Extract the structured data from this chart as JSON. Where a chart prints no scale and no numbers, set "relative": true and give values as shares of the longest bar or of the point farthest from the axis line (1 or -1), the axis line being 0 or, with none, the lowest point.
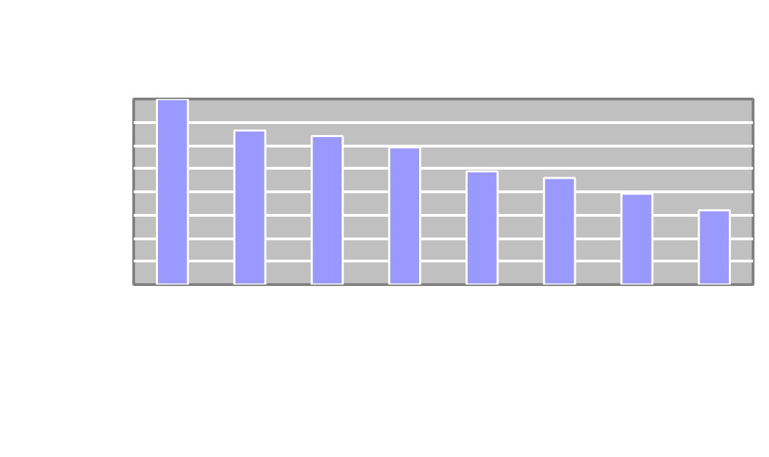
{
  "chart_data": {
    "type": "bar",
    "relative": true,
    "categories": [
      null,
      null,
      null,
      null,
      null,
      null,
      null,
      null
    ],
    "values": [
      1,
      0.83,
      0.8,
      0.74,
      0.61,
      0.575,
      0.49,
      0.4
    ],
    "color": "#9999ff",
    "grid": "y"
  }
}
